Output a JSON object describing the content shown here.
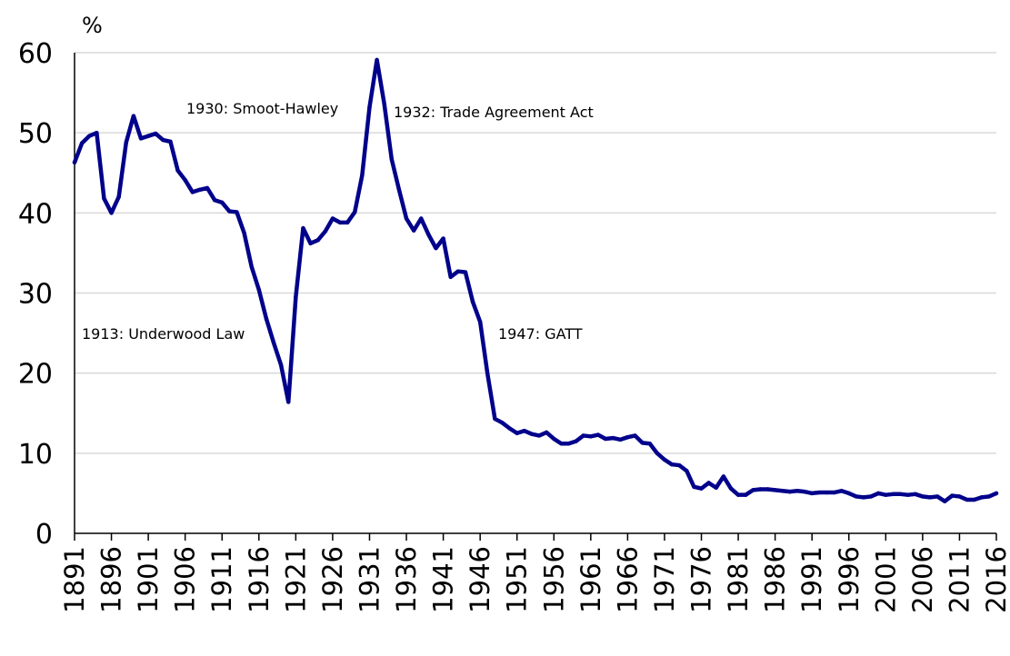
{
  "chart_data": {
    "type": "line",
    "unit_label": "%",
    "ylim": [
      0,
      60
    ],
    "y_ticks": [
      0,
      10,
      20,
      30,
      40,
      50,
      60
    ],
    "x_ticks": [
      1891,
      1896,
      1901,
      1906,
      1911,
      1916,
      1921,
      1926,
      1931,
      1936,
      1941,
      1946,
      1951,
      1956,
      1961,
      1966,
      1971,
      1976,
      1981,
      1986,
      1991,
      1996,
      2001,
      2006,
      2011,
      2016
    ],
    "xlim": [
      1891,
      2016
    ],
    "grid": true,
    "series_color": "#00008b",
    "annotations": [
      {
        "text": "1930: Smoot-Hawley"
      },
      {
        "text": "1932: Trade Agreement Act"
      },
      {
        "text": "1913: Underwood Law"
      },
      {
        "text": "1947: GATT"
      }
    ],
    "x": [
      1891,
      1892,
      1893,
      1894,
      1895,
      1896,
      1897,
      1898,
      1899,
      1900,
      1901,
      1902,
      1903,
      1904,
      1905,
      1906,
      1907,
      1908,
      1909,
      1910,
      1911,
      1912,
      1913,
      1914,
      1915,
      1916,
      1917,
      1918,
      1919,
      1920,
      1921,
      1922,
      1923,
      1924,
      1925,
      1926,
      1927,
      1928,
      1929,
      1930,
      1931,
      1932,
      1933,
      1934,
      1935,
      1936,
      1937,
      1938,
      1939,
      1940,
      1941,
      1942,
      1943,
      1944,
      1945,
      1946,
      1947,
      1948,
      1949,
      1950,
      1951,
      1952,
      1953,
      1954,
      1955,
      1956,
      1957,
      1958,
      1959,
      1960,
      1961,
      1962,
      1963,
      1964,
      1965,
      1966,
      1967,
      1968,
      1969,
      1970,
      1971,
      1972,
      1973,
      1974,
      1975,
      1976,
      1977,
      1978,
      1979,
      1980,
      1981,
      1982,
      1983,
      1984,
      1985,
      1986,
      1987,
      1988,
      1989,
      1990,
      1991,
      1992,
      1993,
      1994,
      1995,
      1996,
      1997,
      1998,
      1999,
      2000,
      2001,
      2002,
      2003,
      2004,
      2005,
      2006,
      2007,
      2008,
      2009,
      2010,
      2011,
      2012,
      2013,
      2014,
      2015,
      2016
    ],
    "values": [
      46.3,
      48.7,
      49.6,
      50.0,
      41.8,
      40.0,
      42.0,
      48.8,
      52.1,
      49.3,
      49.6,
      49.9,
      49.1,
      48.9,
      45.3,
      44.1,
      42.6,
      42.9,
      43.1,
      41.6,
      41.3,
      40.2,
      40.1,
      37.5,
      33.3,
      30.4,
      26.8,
      23.8,
      21.0,
      16.4,
      29.5,
      38.1,
      36.2,
      36.6,
      37.7,
      39.3,
      38.8,
      38.8,
      40.1,
      44.7,
      53.2,
      59.1,
      53.6,
      46.7,
      42.9,
      39.3,
      37.8,
      39.3,
      37.3,
      35.6,
      36.8,
      32.0,
      32.7,
      32.6,
      28.9,
      26.4,
      19.9,
      14.3,
      13.8,
      13.1,
      12.5,
      12.8,
      12.4,
      12.2,
      12.6,
      11.8,
      11.2,
      11.2,
      11.5,
      12.2,
      12.1,
      12.3,
      11.8,
      11.9,
      11.7,
      12.0,
      12.2,
      11.3,
      11.2,
      10.0,
      9.2,
      8.6,
      8.5,
      7.8,
      5.8,
      5.6,
      6.3,
      5.7,
      7.1,
      5.6,
      4.8,
      4.8,
      5.4,
      5.5,
      5.5,
      5.4,
      5.3,
      5.2,
      5.3,
      5.2,
      5.0,
      5.1,
      5.1,
      5.1,
      5.3,
      5.0,
      4.6,
      4.5,
      4.6,
      5.0,
      4.8,
      4.9,
      4.9,
      4.8,
      4.9,
      4.6,
      4.5,
      4.6,
      4.0,
      4.7,
      4.6,
      4.2,
      4.2,
      4.5,
      4.6,
      5.0
    ]
  }
}
